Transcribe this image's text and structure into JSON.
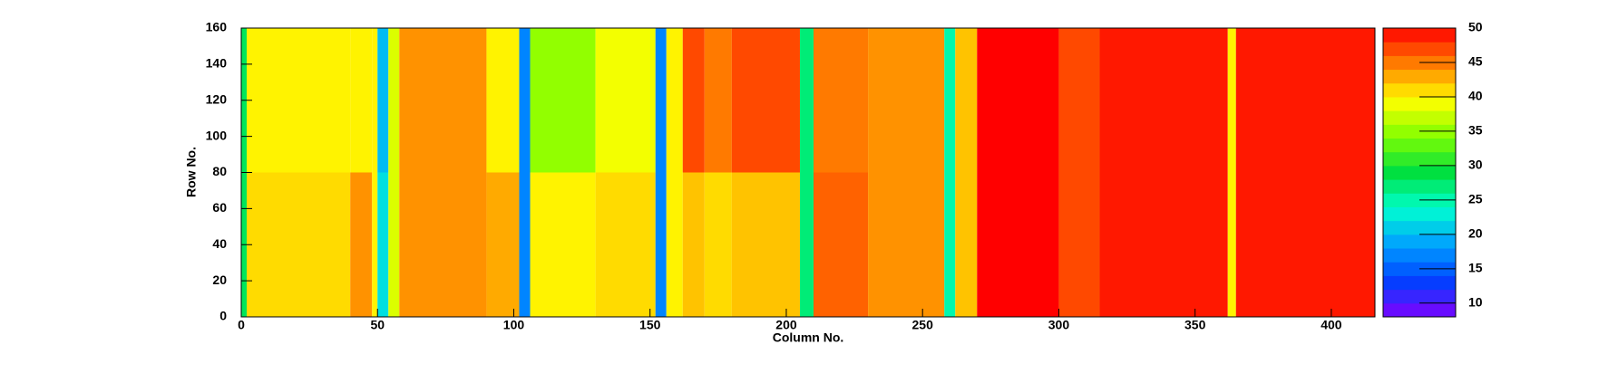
{
  "chart_data": {
    "type": "heatmap",
    "x_label": "Column No.",
    "y_label": "Row No.",
    "x_edges": [
      0,
      2,
      40,
      48,
      50,
      54,
      58,
      90,
      102,
      106,
      130,
      152,
      156,
      162,
      170,
      180,
      205,
      210,
      230,
      258,
      262,
      270,
      300,
      315,
      362,
      365,
      416
    ],
    "y_edges": [
      0,
      80,
      160
    ],
    "z": [
      [
        28,
        41,
        44,
        40,
        22,
        38,
        44,
        43,
        17,
        40,
        41,
        17,
        40,
        42,
        41,
        42,
        27,
        46,
        44,
        25,
        42,
        50,
        47,
        49,
        40,
        49
      ],
      [
        28,
        40,
        40,
        40,
        20,
        38,
        44,
        40,
        17,
        35,
        39,
        17,
        40,
        47,
        45,
        47,
        27,
        45,
        44,
        25,
        42,
        50,
        47,
        49,
        40,
        49
      ]
    ],
    "xlim": [
      0,
      416
    ],
    "ylim": [
      0,
      160
    ],
    "zlim": [
      8,
      50
    ],
    "xticks": [
      0,
      50,
      100,
      150,
      200,
      250,
      300,
      350,
      400
    ],
    "yticks": [
      0,
      20,
      40,
      60,
      80,
      100,
      120,
      140,
      160
    ],
    "zticks": [
      10,
      15,
      20,
      25,
      30,
      35,
      40,
      45,
      50
    ],
    "colormap": [
      "#8000ff",
      "#0040ff",
      "#00a0ff",
      "#00ffd0",
      "#00e040",
      "#80ff00",
      "#ffff00",
      "#ff8000",
      "#ff0000"
    ]
  }
}
